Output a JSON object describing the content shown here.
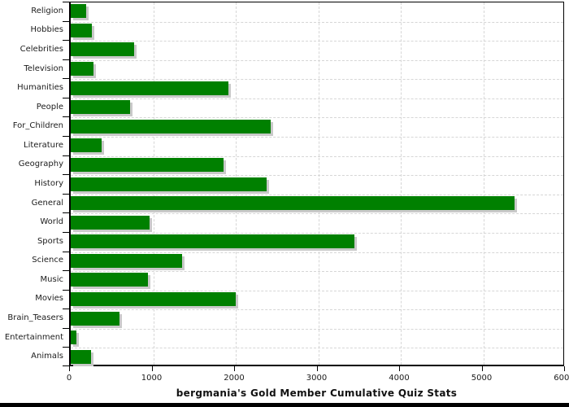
{
  "chart_data": {
    "type": "bar",
    "orientation": "horizontal",
    "title": "bergmania's Gold Member Cumulative Quiz Stats",
    "categories": [
      "Religion",
      "Hobbies",
      "Celebrities",
      "Television",
      "Humanities",
      "People",
      "For_Children",
      "Literature",
      "Geography",
      "History",
      "General",
      "World",
      "Sports",
      "Science",
      "Music",
      "Movies",
      "Brain_Teasers",
      "Entertainment",
      "Animals"
    ],
    "values": [
      190,
      255,
      770,
      280,
      1910,
      720,
      2420,
      375,
      1850,
      2375,
      5375,
      955,
      3435,
      1350,
      935,
      2000,
      590,
      70,
      245
    ],
    "xlabel": "",
    "ylabel": "",
    "xlim": [
      0,
      6000
    ],
    "x_ticks": [
      0,
      1000,
      2000,
      3000,
      4000,
      5000,
      6000
    ],
    "grid": "dashed",
    "legend": "none",
    "bar_color": "#008000",
    "bar_shadow_color": "#c9c9c9",
    "grid_color": "#d6d6d6",
    "axis_color": "#000000",
    "text_color": "#1c1c1c"
  },
  "layout_note_colors": {
    "background": "#ffffff",
    "bottom_strip": "#000000"
  }
}
